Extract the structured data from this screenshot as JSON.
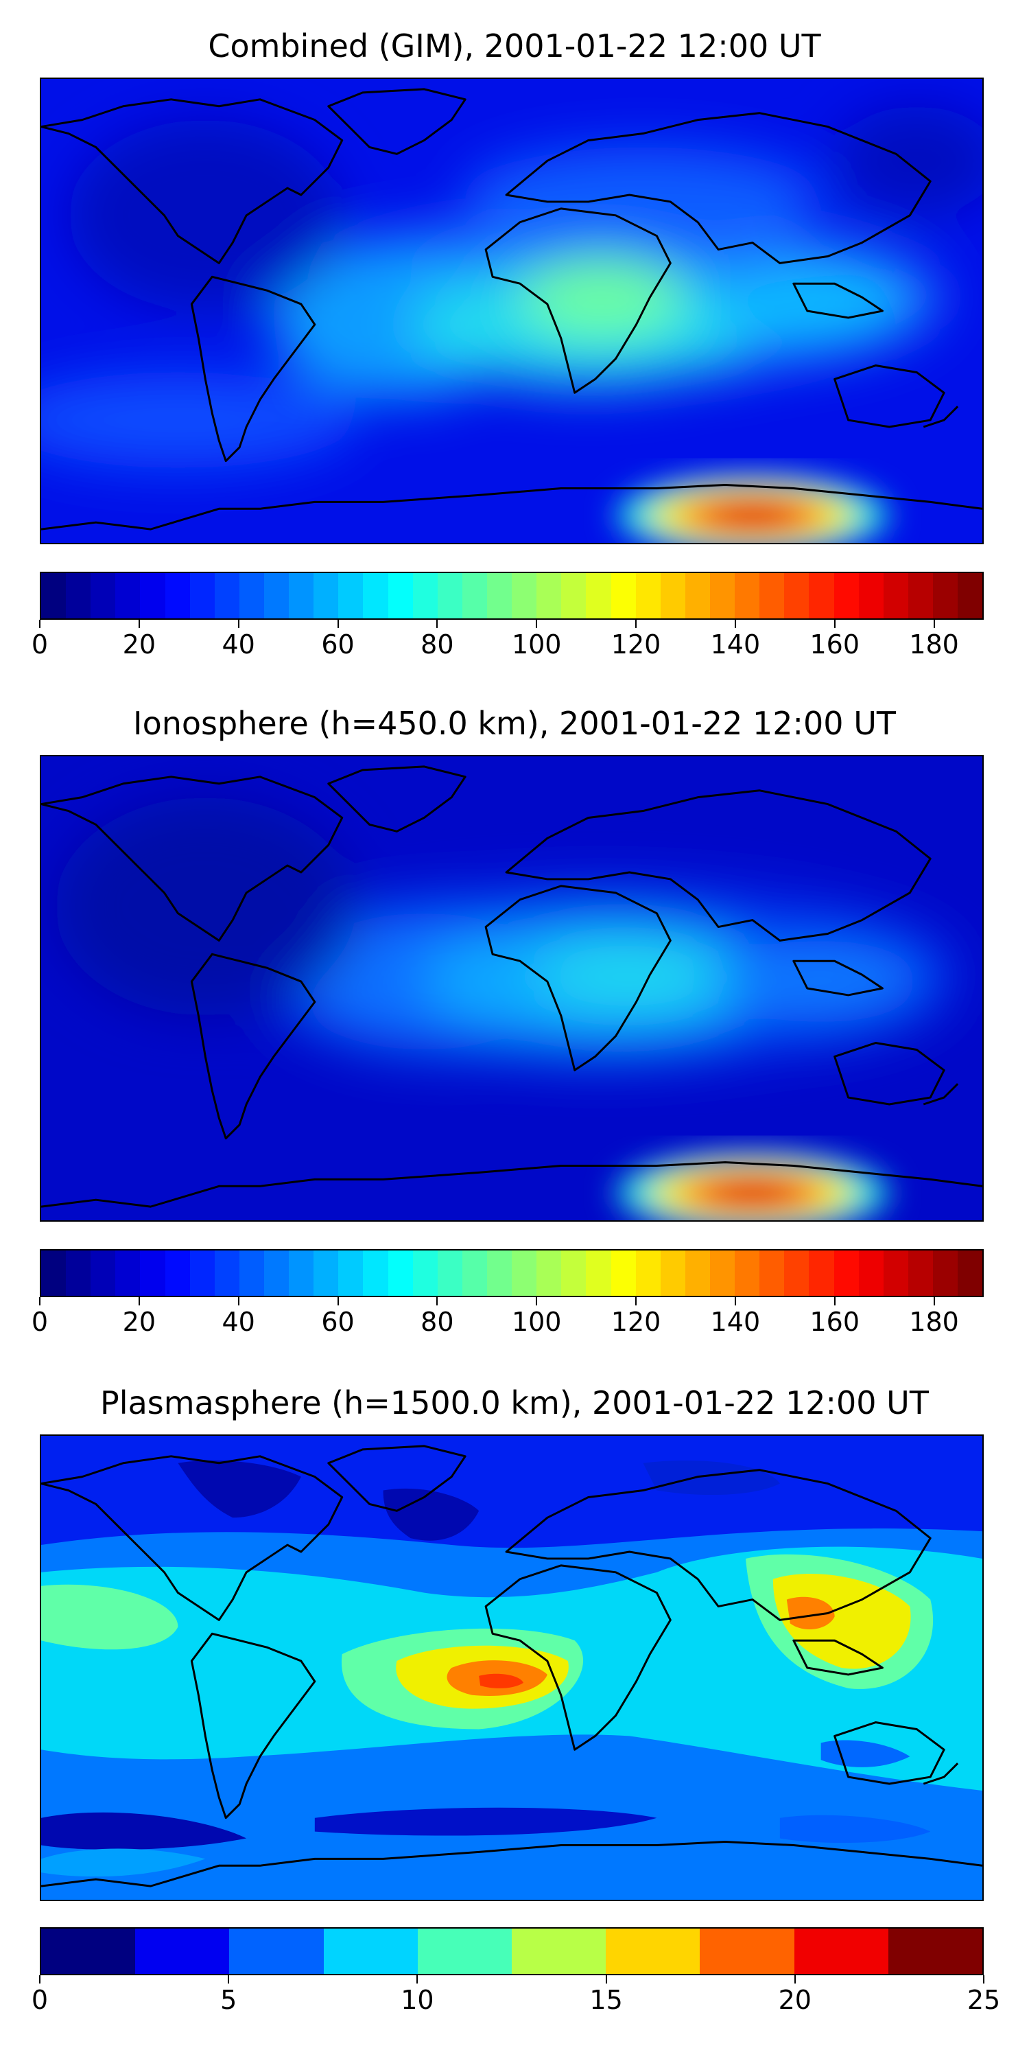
{
  "panels": [
    {
      "title": "Combined (GIM), 2001-01-22 12:00 UT",
      "colorbar": {
        "min": 0,
        "max": 190,
        "step": 5,
        "ticks": [
          "0",
          "20",
          "40",
          "60",
          "80",
          "100",
          "120",
          "140",
          "160",
          "180"
        ],
        "tick_values": [
          0,
          20,
          40,
          60,
          80,
          100,
          120,
          140,
          160,
          180
        ]
      }
    },
    {
      "title": "Ionosphere  (h=450.0 km), 2001-01-22 12:00 UT",
      "colorbar": {
        "min": 0,
        "max": 190,
        "step": 5,
        "ticks": [
          "0",
          "20",
          "40",
          "60",
          "80",
          "100",
          "120",
          "140",
          "160",
          "180"
        ],
        "tick_values": [
          0,
          20,
          40,
          60,
          80,
          100,
          120,
          140,
          160,
          180
        ]
      }
    },
    {
      "title": "Plasmasphere (h=1500.0 km), 2001-01-22 12:00 UT",
      "colorbar": {
        "min": 0,
        "max": 25,
        "step": 2.5,
        "ticks": [
          "0",
          "5",
          "10",
          "15",
          "20",
          "25"
        ],
        "tick_values": [
          0,
          5,
          10,
          15,
          20,
          25
        ]
      }
    }
  ],
  "colormap": "jet",
  "colors": {
    "coastline": "#000000",
    "background": "#ffffff"
  }
}
